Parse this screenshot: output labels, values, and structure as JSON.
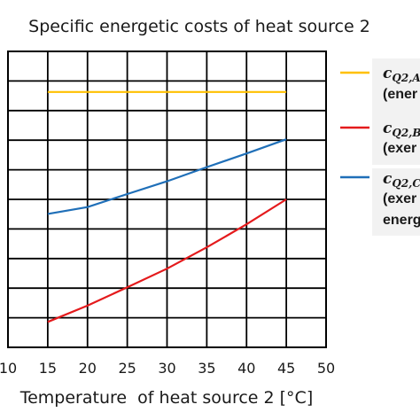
{
  "chart_data": {
    "type": "line",
    "title": "Specific energetic costs of heat source 2",
    "xlabel": "Temperature  of heat source 2 [°C]",
    "ylabel": "",
    "xlim": [
      10,
      50
    ],
    "ylim": [
      0,
      1
    ],
    "xticks": [
      "10",
      "15",
      "20",
      "25",
      "30",
      "35",
      "40",
      "45",
      "50"
    ],
    "grid": true,
    "legend_position": "right",
    "series": [
      {
        "symbol": "c",
        "subscript": "Q2,A",
        "desc": "(ener",
        "desc2": "",
        "color": "#ffc000",
        "x": [
          15,
          20,
          25,
          30,
          35,
          40,
          45
        ],
        "y": [
          0.863,
          0.863,
          0.863,
          0.863,
          0.863,
          0.863,
          0.863
        ]
      },
      {
        "symbol": "c",
        "subscript": "Q2,B",
        "desc": "(exer",
        "desc2": "",
        "color": "#e41a1c",
        "x": [
          15,
          20,
          25,
          30,
          35,
          40,
          45
        ],
        "y": [
          0.086,
          0.141,
          0.203,
          0.266,
          0.338,
          0.416,
          0.5
        ]
      },
      {
        "symbol": "c",
        "subscript": "Q2,C",
        "desc": "(exer",
        "desc2": "energ",
        "color": "#1f6fb8",
        "x": [
          15,
          20,
          25,
          30,
          35,
          40,
          45
        ],
        "y": [
          0.451,
          0.474,
          0.518,
          0.561,
          0.609,
          0.655,
          0.703
        ]
      }
    ]
  }
}
